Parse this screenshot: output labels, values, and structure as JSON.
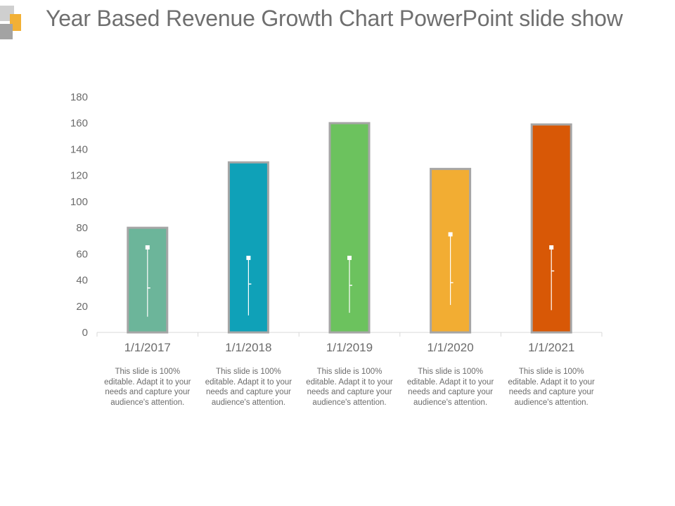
{
  "title": "Year Based Revenue Growth Chart PowerPoint slide show",
  "chart_data": {
    "type": "bar",
    "categories": [
      "1/1/2017",
      "1/1/2018",
      "1/1/2019",
      "1/1/2020",
      "1/1/2021"
    ],
    "values": [
      80,
      130,
      160,
      125,
      159
    ],
    "colors": [
      "#6cb59a",
      "#0fa1b8",
      "#6cc25e",
      "#f2ad33",
      "#d85806"
    ],
    "ylim": [
      0,
      180
    ],
    "yticks": [
      0,
      20,
      40,
      60,
      80,
      100,
      120,
      140,
      160,
      180
    ],
    "overlay": [
      {
        "high": 65,
        "low": 12,
        "mid": 34
      },
      {
        "high": 57,
        "low": 13,
        "mid": 37
      },
      {
        "high": 57,
        "low": 15,
        "mid": 36
      },
      {
        "high": 75,
        "low": 21,
        "mid": 38
      },
      {
        "high": 65,
        "low": 17,
        "mid": 47
      }
    ],
    "xlabel": "",
    "ylabel": ""
  },
  "descriptions": [
    "This slide is 100% editable. Adapt it to your needs and capture your audience's attention.",
    "This slide is 100% editable. Adapt it to your needs and capture your audience's attention.",
    "This slide is 100% editable. Adapt it to your needs and capture your audience's attention.",
    "This slide is 100% editable. Adapt it to your needs and capture your audience's attention.",
    "This slide is 100% editable. Adapt it to your needs and capture your audience's attention."
  ]
}
